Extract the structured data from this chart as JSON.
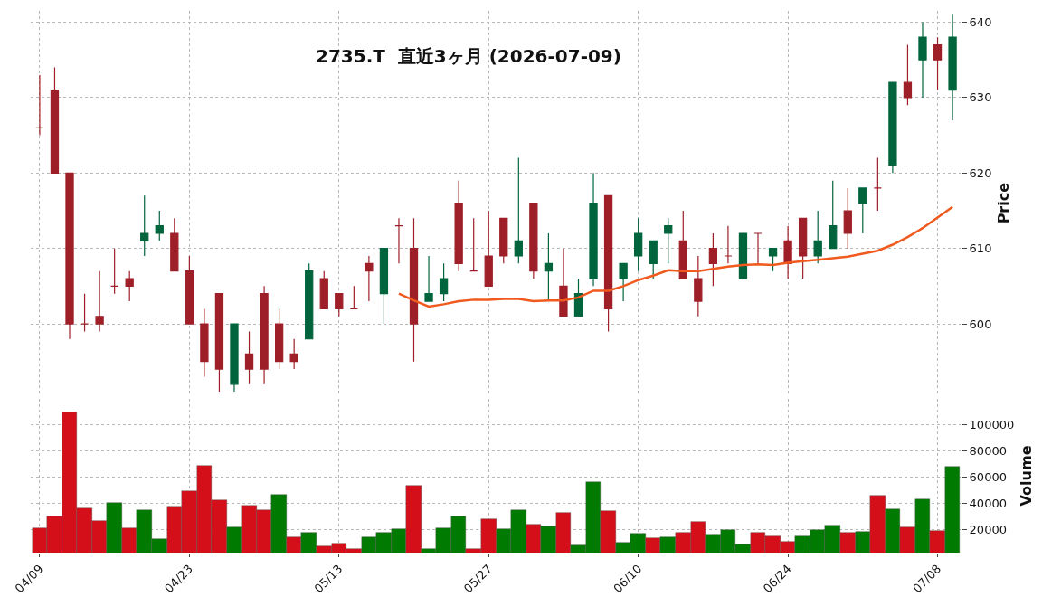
{
  "chart_data": [
    {
      "type": "candlestick",
      "title": "2735.T  直近3ヶ月 (2026-07-09)",
      "ylabel": "Price",
      "categories": [
        null,
        null,
        null,
        null,
        null,
        null,
        null,
        null,
        null,
        null,
        null,
        null,
        null,
        null,
        null,
        null,
        null,
        null,
        null,
        null,
        null,
        null,
        null,
        null,
        null,
        null,
        null,
        null,
        null,
        null,
        null,
        null,
        null,
        null,
        null,
        null,
        null,
        null,
        null,
        null,
        null,
        null,
        null,
        null,
        null,
        null,
        null,
        null,
        null,
        null,
        null,
        null,
        null,
        null,
        null,
        null,
        null,
        null,
        null,
        null,
        null,
        null
      ],
      "ohlc": [
        [
          626,
          633,
          625,
          626
        ],
        [
          631,
          634,
          620,
          620
        ],
        [
          620,
          620,
          598,
          600
        ],
        [
          600,
          604,
          599,
          600
        ],
        [
          601,
          607,
          599,
          600
        ],
        [
          605,
          610,
          604,
          605
        ],
        [
          606,
          607,
          603,
          605
        ],
        [
          611,
          617,
          609,
          612
        ],
        [
          612,
          615,
          611,
          613
        ],
        [
          612,
          614,
          607,
          607
        ],
        [
          607,
          609,
          600,
          600
        ],
        [
          600,
          602,
          593,
          595
        ],
        [
          604,
          604,
          591,
          594
        ],
        [
          592,
          600,
          591,
          600
        ],
        [
          596,
          599,
          592,
          594
        ],
        [
          604,
          605,
          592,
          594
        ],
        [
          600,
          602,
          594,
          595
        ],
        [
          596,
          598,
          594,
          595
        ],
        [
          598,
          608,
          598,
          607
        ],
        [
          606,
          607,
          602,
          602
        ],
        [
          604,
          604,
          601,
          602
        ],
        [
          602,
          605,
          602,
          602
        ],
        [
          608,
          609,
          603,
          607
        ],
        [
          604,
          610,
          600,
          610
        ],
        [
          613,
          614,
          608,
          613
        ],
        [
          610,
          614,
          595,
          600
        ],
        [
          603,
          609,
          603,
          604
        ],
        [
          604,
          608,
          603,
          606
        ],
        [
          616,
          619,
          607,
          608
        ],
        [
          607,
          614,
          607,
          607
        ],
        [
          609,
          615,
          605,
          605
        ],
        [
          614,
          614,
          608,
          609
        ],
        [
          609,
          622,
          608,
          611
        ],
        [
          616,
          616,
          606,
          607
        ],
        [
          607,
          612,
          603,
          608
        ],
        [
          605,
          610,
          601,
          601
        ],
        [
          601,
          606,
          601,
          604
        ],
        [
          606,
          620,
          605,
          616
        ],
        [
          617,
          617,
          599,
          602
        ],
        [
          606,
          608,
          603,
          608
        ],
        [
          609,
          614,
          607,
          612
        ],
        [
          608,
          611,
          606,
          611
        ],
        [
          612,
          614,
          608,
          613
        ],
        [
          611,
          615,
          606,
          606
        ],
        [
          606,
          609,
          601,
          603
        ],
        [
          610,
          612,
          605,
          608
        ],
        [
          609,
          613,
          608,
          609
        ],
        [
          606,
          612,
          606,
          612
        ],
        [
          612,
          612,
          608,
          612
        ],
        [
          609,
          610,
          607,
          610
        ],
        [
          611,
          613,
          606,
          608
        ],
        [
          614,
          614,
          606,
          609
        ],
        [
          609,
          615,
          608,
          611
        ],
        [
          610,
          619,
          610,
          613
        ],
        [
          615,
          618,
          610,
          612
        ],
        [
          616,
          618,
          612,
          618
        ],
        [
          618,
          622,
          615,
          618
        ],
        [
          621,
          632,
          620,
          632
        ],
        [
          632,
          637,
          629,
          630
        ],
        [
          635,
          640,
          630,
          638
        ],
        [
          637,
          638,
          631,
          635
        ],
        [
          631,
          641,
          627,
          638
        ]
      ],
      "colors": [
        "#9e1f28",
        "#9e1f28",
        "#9e1f28",
        "#9e1f28",
        "#9e1f28",
        "#9e1f28",
        "#9e1f28",
        "#00643c",
        "#00643c",
        "#9e1f28",
        "#9e1f28",
        "#9e1f28",
        "#9e1f28",
        "#00643c",
        "#9e1f28",
        "#9e1f28",
        "#9e1f28",
        "#9e1f28",
        "#00643c",
        "#9e1f28",
        "#9e1f28",
        "#9e1f28",
        "#9e1f28",
        "#00643c",
        "#9e1f28",
        "#9e1f28",
        "#00643c",
        "#00643c",
        "#9e1f28",
        "#9e1f28",
        "#9e1f28",
        "#9e1f28",
        "#00643c",
        "#9e1f28",
        "#00643c",
        "#9e1f28",
        "#00643c",
        "#00643c",
        "#9e1f28",
        "#00643c",
        "#00643c",
        "#00643c",
        "#00643c",
        "#9e1f28",
        "#9e1f28",
        "#9e1f28",
        "#9e1f28",
        "#00643c",
        "#9e1f28",
        "#00643c",
        "#9e1f28",
        "#9e1f28",
        "#00643c",
        "#00643c",
        "#9e1f28",
        "#00643c",
        "#9e1f28",
        "#00643c",
        "#9e1f28",
        "#00643c",
        "#9e1f28",
        "#00643c"
      ],
      "series": [
        {
          "type": "line",
          "color": "#f05a1e",
          "values": [
            null,
            null,
            null,
            null,
            null,
            null,
            null,
            null,
            null,
            null,
            null,
            null,
            null,
            null,
            null,
            null,
            null,
            null,
            null,
            null,
            null,
            null,
            null,
            null,
            604.0,
            603.1,
            602.3,
            602.6,
            603.0,
            603.2,
            603.2,
            603.3,
            603.3,
            603.0,
            603.1,
            603.1,
            603.5,
            604.4,
            604.4,
            605.0,
            605.8,
            606.4,
            607.1,
            607.0,
            607.0,
            607.3,
            607.6,
            607.8,
            607.9,
            607.8,
            608.1,
            608.3,
            608.5,
            608.7,
            608.9,
            609.3,
            609.7,
            610.5,
            611.5,
            612.7,
            614.1,
            615.5
          ]
        }
      ],
      "ylim": [
        590.5,
        641.5
      ],
      "yticks": [
        600,
        610,
        620,
        630,
        640
      ],
      "grid": true,
      "tick_labels": "y"
    },
    {
      "type": "bar",
      "ylabel": "Volume",
      "categories": [
        "04/09",
        null,
        null,
        null,
        null,
        null,
        null,
        null,
        null,
        null,
        "04/23",
        null,
        null,
        null,
        null,
        null,
        null,
        null,
        null,
        null,
        "05/13",
        null,
        null,
        null,
        null,
        null,
        null,
        null,
        null,
        null,
        "05/27",
        null,
        null,
        null,
        null,
        null,
        null,
        null,
        null,
        null,
        "06/10",
        null,
        null,
        null,
        null,
        null,
        null,
        null,
        null,
        null,
        "06/24",
        null,
        null,
        null,
        null,
        null,
        null,
        null,
        null,
        null,
        "07/08",
        null
      ],
      "values": [
        21300,
        30200,
        109300,
        36600,
        26900,
        40700,
        21300,
        35100,
        13200,
        37900,
        49600,
        68600,
        42700,
        22100,
        38600,
        35100,
        46800,
        14500,
        18000,
        7100,
        9700,
        5600,
        14000,
        18000,
        20800,
        53600,
        5600,
        21300,
        30200,
        5600,
        28200,
        20800,
        35300,
        24300,
        22600,
        33300,
        8200,
        56400,
        34600,
        10000,
        16900,
        13600,
        14400,
        17700,
        26400,
        16400,
        19700,
        8700,
        17700,
        15100,
        10800,
        15100,
        19700,
        23100,
        17700,
        18200,
        46200,
        35400,
        21800,
        43600,
        19200,
        67900
      ],
      "colors": [
        "#d40f1a",
        "#d40f1a",
        "#d40f1a",
        "#d40f1a",
        "#d40f1a",
        "#007a00",
        "#d40f1a",
        "#007a00",
        "#007a00",
        "#d40f1a",
        "#d40f1a",
        "#d40f1a",
        "#d40f1a",
        "#007a00",
        "#d40f1a",
        "#d40f1a",
        "#007a00",
        "#d40f1a",
        "#007a00",
        "#d40f1a",
        "#d40f1a",
        "#d40f1a",
        "#007a00",
        "#007a00",
        "#007a00",
        "#d40f1a",
        "#007a00",
        "#007a00",
        "#007a00",
        "#d40f1a",
        "#d40f1a",
        "#007a00",
        "#007a00",
        "#d40f1a",
        "#007a00",
        "#d40f1a",
        "#007a00",
        "#007a00",
        "#d40f1a",
        "#007a00",
        "#007a00",
        "#d40f1a",
        "#007a00",
        "#d40f1a",
        "#d40f1a",
        "#007a00",
        "#007a00",
        "#007a00",
        "#d40f1a",
        "#d40f1a",
        "#d40f1a",
        "#007a00",
        "#007a00",
        "#007a00",
        "#d40f1a",
        "#007a00",
        "#d40f1a",
        "#007a00",
        "#d40f1a",
        "#007a00",
        "#d40f1a",
        "#007a00"
      ],
      "ylim": [
        2500,
        120000
      ],
      "yticks": [
        20000,
        40000,
        60000,
        80000,
        100000
      ],
      "grid": true
    }
  ]
}
